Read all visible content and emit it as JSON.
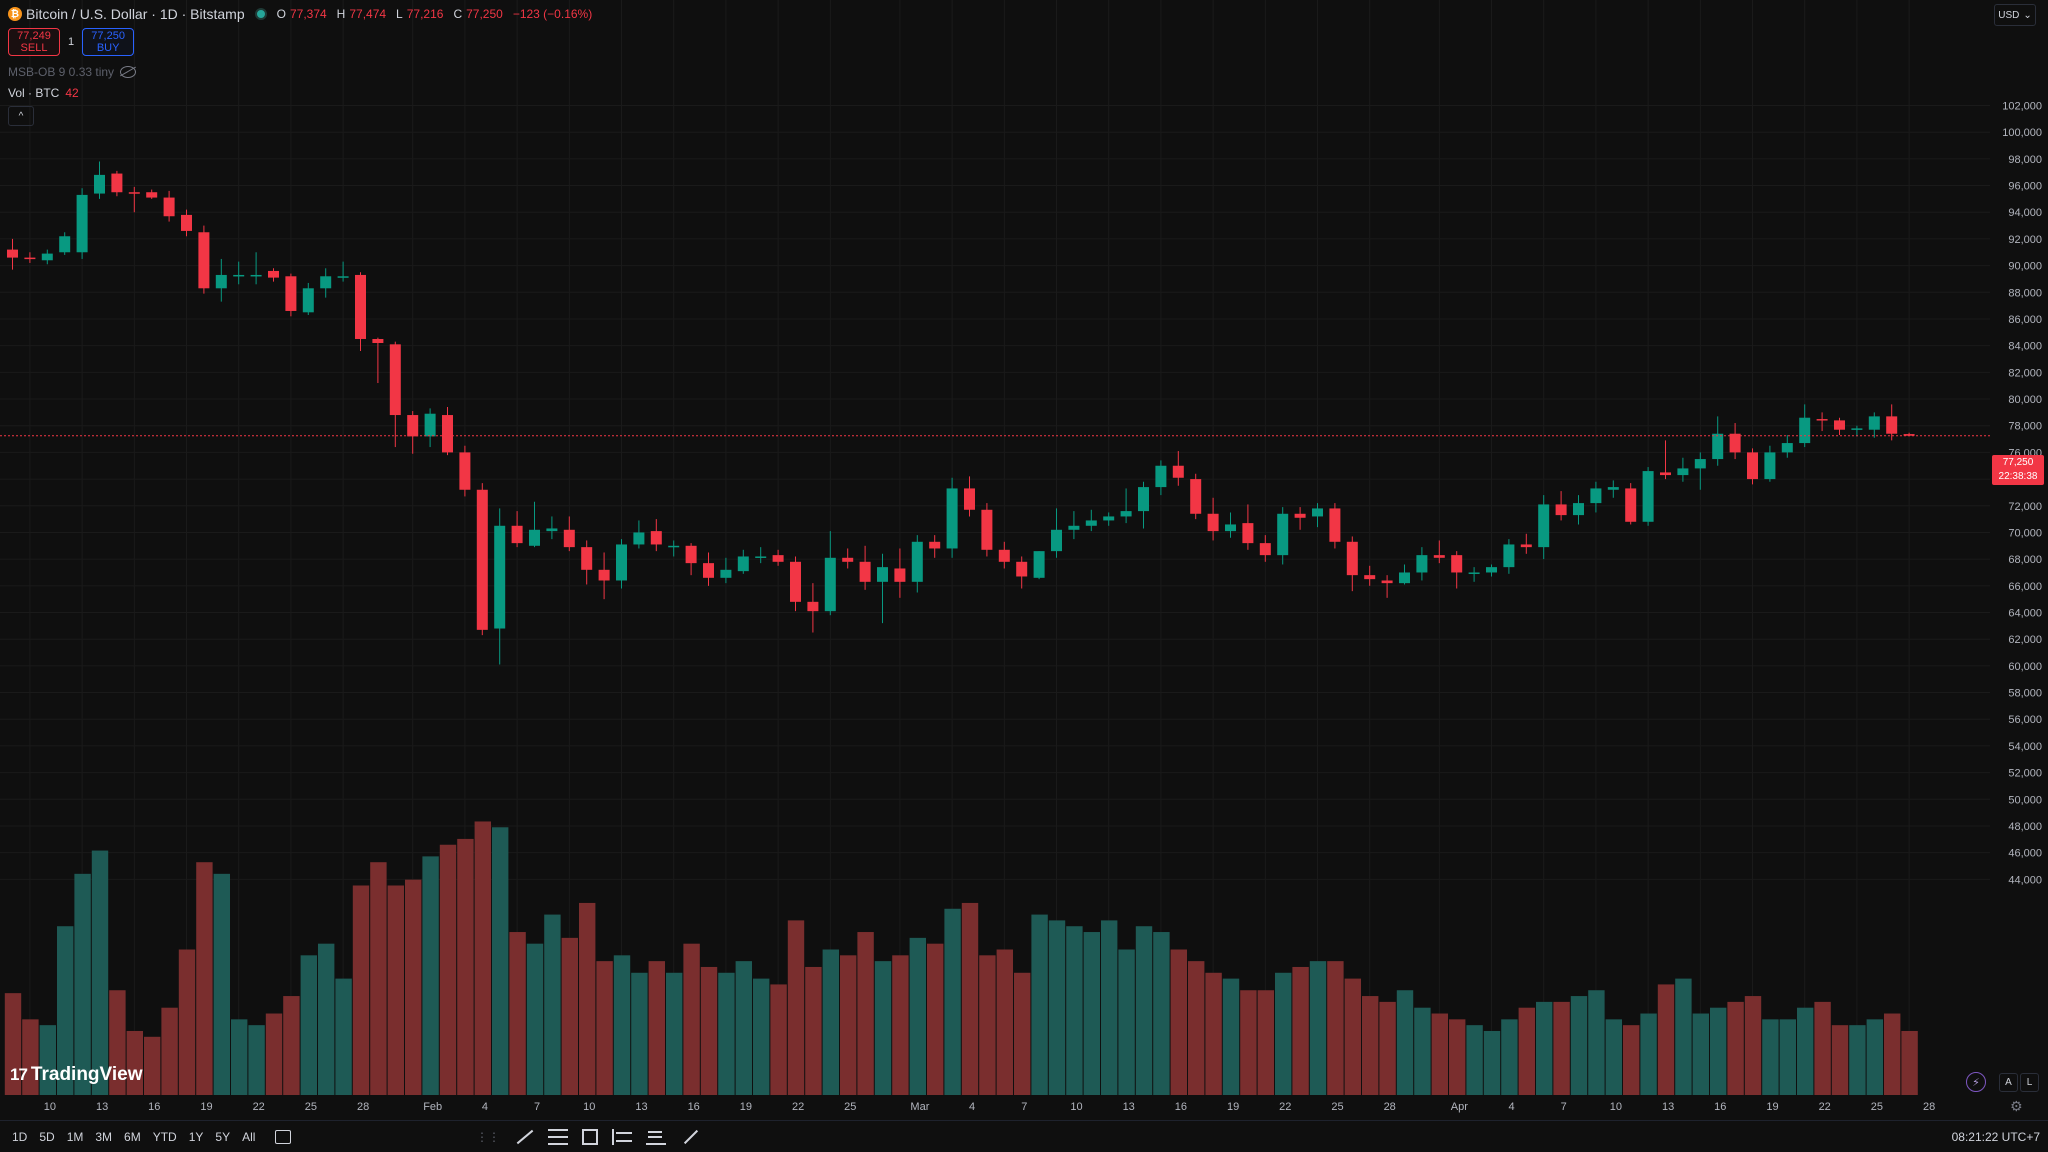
{
  "header": {
    "logo_glyph": "₿",
    "symbol_title": "Bitcoin / U.S. Dollar · 1D · Bitstamp",
    "ohlc": {
      "open_label": "O",
      "open": "77,374",
      "high_label": "H",
      "high": "77,474",
      "low_label": "L",
      "low": "77,216",
      "close_label": "C",
      "close": "77,250",
      "change": "−123 (−0.16%)"
    },
    "sell": {
      "price": "77,249",
      "label": "SELL"
    },
    "buy": {
      "price": "77,250",
      "label": "BUY"
    },
    "spread": "1",
    "indicator_msb": "MSB-OB 9 0.33 tiny",
    "indicator_vol_label": "Vol · BTC",
    "indicator_vol_value": "42",
    "collapse_glyph": "^"
  },
  "currency": {
    "label": "USD",
    "arrow": "⌄"
  },
  "last_price": {
    "value": "77,250",
    "countdown": "22:38:38"
  },
  "watermark": {
    "logo": "17",
    "text": "TradingView"
  },
  "axis_buttons": {
    "auto": "A",
    "log": "L"
  },
  "bolt_glyph": "⚡",
  "gear_glyph": "⚙",
  "bottom_bar": {
    "ranges": [
      "1D",
      "5D",
      "1M",
      "3M",
      "6M",
      "YTD",
      "1Y",
      "5Y",
      "All"
    ],
    "dots": "⋮⋮",
    "clock": "08:21:22 UTC+7"
  },
  "colors": {
    "up": "#089981",
    "down": "#f23645",
    "vol_up": "#1e5a55",
    "vol_down": "#7a2e2e",
    "grid": "#1a1a1a",
    "text": "#d1d4dc"
  },
  "chart_data": {
    "type": "candlestick",
    "price_axis_ticks": [
      "102,000",
      "100,000",
      "98,000",
      "96,000",
      "94,000",
      "92,000",
      "90,000",
      "88,000",
      "86,000",
      "84,000",
      "82,000",
      "80,000",
      "78,000",
      "76,000",
      "74,000",
      "72,000",
      "70,000",
      "68,000",
      "66,000",
      "64,000",
      "62,000",
      "60,000",
      "58,000",
      "56,000",
      "54,000",
      "52,000",
      "50,000",
      "48,000",
      "46,000",
      "44,000"
    ],
    "date_axis_labels": [
      {
        "i": 1,
        "label": "10"
      },
      {
        "i": 4,
        "label": "13"
      },
      {
        "i": 7,
        "label": "16"
      },
      {
        "i": 10,
        "label": "19"
      },
      {
        "i": 13,
        "label": "22"
      },
      {
        "i": 16,
        "label": "25"
      },
      {
        "i": 19,
        "label": "28"
      },
      {
        "i": 23,
        "label": "Feb"
      },
      {
        "i": 26,
        "label": "4"
      },
      {
        "i": 29,
        "label": "7"
      },
      {
        "i": 32,
        "label": "10"
      },
      {
        "i": 35,
        "label": "13"
      },
      {
        "i": 38,
        "label": "16"
      },
      {
        "i": 41,
        "label": "19"
      },
      {
        "i": 44,
        "label": "22"
      },
      {
        "i": 47,
        "label": "25"
      },
      {
        "i": 51,
        "label": "Mar"
      },
      {
        "i": 54,
        "label": "4"
      },
      {
        "i": 57,
        "label": "7"
      },
      {
        "i": 60,
        "label": "10"
      },
      {
        "i": 63,
        "label": "13"
      },
      {
        "i": 66,
        "label": "16"
      },
      {
        "i": 69,
        "label": "19"
      },
      {
        "i": 72,
        "label": "22"
      },
      {
        "i": 75,
        "label": "25"
      },
      {
        "i": 78,
        "label": "28"
      },
      {
        "i": 82,
        "label": "Apr"
      },
      {
        "i": 85,
        "label": "4"
      },
      {
        "i": 88,
        "label": "7"
      },
      {
        "i": 91,
        "label": "10"
      },
      {
        "i": 94,
        "label": "13"
      },
      {
        "i": 97,
        "label": "16"
      },
      {
        "i": 100,
        "label": "19"
      },
      {
        "i": 103,
        "label": "22"
      },
      {
        "i": 106,
        "label": "25"
      },
      {
        "i": 109,
        "label": "28"
      }
    ],
    "last_close": 77250,
    "candles": [
      {
        "o": 91200,
        "h": 92000,
        "l": 89700,
        "c": 90600,
        "v": 1750
      },
      {
        "o": 90600,
        "h": 91000,
        "l": 90200,
        "c": 90500,
        "v": 1300
      },
      {
        "o": 90400,
        "h": 91200,
        "l": 90100,
        "c": 90900,
        "v": 1200
      },
      {
        "o": 91000,
        "h": 92500,
        "l": 90800,
        "c": 92200,
        "v": 2900
      },
      {
        "o": 91000,
        "h": 95800,
        "l": 90500,
        "c": 95300,
        "v": 3800
      },
      {
        "o": 95400,
        "h": 97800,
        "l": 95000,
        "c": 96800,
        "v": 4200
      },
      {
        "o": 96900,
        "h": 97100,
        "l": 95200,
        "c": 95500,
        "v": 1800
      },
      {
        "o": 95500,
        "h": 95900,
        "l": 94000,
        "c": 95400,
        "v": 1100
      },
      {
        "o": 95500,
        "h": 95700,
        "l": 95000,
        "c": 95100,
        "v": 1000
      },
      {
        "o": 95100,
        "h": 95600,
        "l": 93300,
        "c": 93700,
        "v": 1500
      },
      {
        "o": 93800,
        "h": 94200,
        "l": 92200,
        "c": 92600,
        "v": 2500
      },
      {
        "o": 92500,
        "h": 93000,
        "l": 87900,
        "c": 88300,
        "v": 4000
      },
      {
        "o": 88300,
        "h": 90500,
        "l": 87300,
        "c": 89300,
        "v": 3800
      },
      {
        "o": 89200,
        "h": 90300,
        "l": 88600,
        "c": 89300,
        "v": 1300
      },
      {
        "o": 89300,
        "h": 91000,
        "l": 88600,
        "c": 89300,
        "v": 1200
      },
      {
        "o": 89600,
        "h": 89800,
        "l": 88800,
        "c": 89100,
        "v": 1400
      },
      {
        "o": 89200,
        "h": 89400,
        "l": 86200,
        "c": 86600,
        "v": 1700
      },
      {
        "o": 86500,
        "h": 88700,
        "l": 86300,
        "c": 88300,
        "v": 2400
      },
      {
        "o": 88300,
        "h": 89800,
        "l": 87600,
        "c": 89200,
        "v": 2600
      },
      {
        "o": 89200,
        "h": 90300,
        "l": 88800,
        "c": 89200,
        "v": 2000
      },
      {
        "o": 89300,
        "h": 89500,
        "l": 83600,
        "c": 84500,
        "v": 3600
      },
      {
        "o": 84500,
        "h": 84600,
        "l": 81200,
        "c": 84200,
        "v": 4000
      },
      {
        "o": 84100,
        "h": 84300,
        "l": 76400,
        "c": 78800,
        "v": 3600
      },
      {
        "o": 78800,
        "h": 79100,
        "l": 75900,
        "c": 77200,
        "v": 3700
      },
      {
        "o": 77200,
        "h": 79300,
        "l": 76400,
        "c": 78900,
        "v": 4100
      },
      {
        "o": 78800,
        "h": 79400,
        "l": 75800,
        "c": 76000,
        "v": 4300
      },
      {
        "o": 76000,
        "h": 76500,
        "l": 72700,
        "c": 73200,
        "v": 4400
      },
      {
        "o": 73200,
        "h": 73700,
        "l": 62300,
        "c": 62700,
        "v": 4700
      },
      {
        "o": 62800,
        "h": 71800,
        "l": 60100,
        "c": 70500,
        "v": 4600
      },
      {
        "o": 70500,
        "h": 71600,
        "l": 68900,
        "c": 69200,
        "v": 2800
      },
      {
        "o": 69000,
        "h": 72300,
        "l": 68900,
        "c": 70200,
        "v": 2600
      },
      {
        "o": 70100,
        "h": 71200,
        "l": 69500,
        "c": 70300,
        "v": 3100
      },
      {
        "o": 70200,
        "h": 71200,
        "l": 68600,
        "c": 68900,
        "v": 2700
      },
      {
        "o": 68900,
        "h": 69400,
        "l": 66100,
        "c": 67200,
        "v": 3300
      },
      {
        "o": 67200,
        "h": 68500,
        "l": 65000,
        "c": 66400,
        "v": 2300
      },
      {
        "o": 66400,
        "h": 69500,
        "l": 65800,
        "c": 69100,
        "v": 2400
      },
      {
        "o": 69100,
        "h": 70900,
        "l": 68800,
        "c": 70000,
        "v": 2100
      },
      {
        "o": 70100,
        "h": 71000,
        "l": 68600,
        "c": 69100,
        "v": 2300
      },
      {
        "o": 69000,
        "h": 69400,
        "l": 68200,
        "c": 69000,
        "v": 2100
      },
      {
        "o": 69000,
        "h": 69200,
        "l": 66800,
        "c": 67700,
        "v": 2600
      },
      {
        "o": 67700,
        "h": 68500,
        "l": 66000,
        "c": 66600,
        "v": 2200
      },
      {
        "o": 66600,
        "h": 68100,
        "l": 66200,
        "c": 67200,
        "v": 2100
      },
      {
        "o": 67100,
        "h": 68700,
        "l": 66900,
        "c": 68200,
        "v": 2300
      },
      {
        "o": 68100,
        "h": 68900,
        "l": 67700,
        "c": 68200,
        "v": 2000
      },
      {
        "o": 68300,
        "h": 68700,
        "l": 67500,
        "c": 67800,
        "v": 1900
      },
      {
        "o": 67800,
        "h": 68200,
        "l": 64100,
        "c": 64800,
        "v": 3000
      },
      {
        "o": 64800,
        "h": 66200,
        "l": 62500,
        "c": 64100,
        "v": 2200
      },
      {
        "o": 64100,
        "h": 70100,
        "l": 63800,
        "c": 68100,
        "v": 2500
      },
      {
        "o": 68100,
        "h": 68800,
        "l": 67300,
        "c": 67800,
        "v": 2400
      },
      {
        "o": 67800,
        "h": 69000,
        "l": 65700,
        "c": 66300,
        "v": 2800
      },
      {
        "o": 66300,
        "h": 68400,
        "l": 63200,
        "c": 67400,
        "v": 2300
      },
      {
        "o": 67300,
        "h": 68800,
        "l": 65100,
        "c": 66300,
        "v": 2400
      },
      {
        "o": 66300,
        "h": 69800,
        "l": 65500,
        "c": 69300,
        "v": 2700
      },
      {
        "o": 69300,
        "h": 69800,
        "l": 68100,
        "c": 68800,
        "v": 2600
      },
      {
        "o": 68800,
        "h": 74100,
        "l": 68100,
        "c": 73300,
        "v": 3200
      },
      {
        "o": 73300,
        "h": 74200,
        "l": 71200,
        "c": 71700,
        "v": 3300
      },
      {
        "o": 71700,
        "h": 72200,
        "l": 68200,
        "c": 68700,
        "v": 2400
      },
      {
        "o": 68700,
        "h": 69300,
        "l": 67300,
        "c": 67800,
        "v": 2500
      },
      {
        "o": 67800,
        "h": 68200,
        "l": 65800,
        "c": 66700,
        "v": 2100
      },
      {
        "o": 66600,
        "h": 68600,
        "l": 66500,
        "c": 68600,
        "v": 3100
      },
      {
        "o": 68600,
        "h": 71800,
        "l": 68100,
        "c": 70200,
        "v": 3000
      },
      {
        "o": 70200,
        "h": 71600,
        "l": 69500,
        "c": 70500,
        "v": 2900
      },
      {
        "o": 70500,
        "h": 71700,
        "l": 70100,
        "c": 70900,
        "v": 2800
      },
      {
        "o": 70900,
        "h": 71500,
        "l": 70500,
        "c": 71200,
        "v": 3000
      },
      {
        "o": 71200,
        "h": 73300,
        "l": 70700,
        "c": 71600,
        "v": 2500
      },
      {
        "o": 71600,
        "h": 73800,
        "l": 70300,
        "c": 73400,
        "v": 2900
      },
      {
        "o": 73400,
        "h": 75400,
        "l": 72800,
        "c": 75000,
        "v": 2800
      },
      {
        "o": 75000,
        "h": 76100,
        "l": 73500,
        "c": 74100,
        "v": 2500
      },
      {
        "o": 74000,
        "h": 74400,
        "l": 71000,
        "c": 71400,
        "v": 2300
      },
      {
        "o": 71400,
        "h": 72600,
        "l": 69400,
        "c": 70100,
        "v": 2100
      },
      {
        "o": 70100,
        "h": 71500,
        "l": 69600,
        "c": 70600,
        "v": 2000
      },
      {
        "o": 70700,
        "h": 72100,
        "l": 68700,
        "c": 69200,
        "v": 1800
      },
      {
        "o": 69200,
        "h": 69800,
        "l": 67800,
        "c": 68300,
        "v": 1800
      },
      {
        "o": 68300,
        "h": 71900,
        "l": 67600,
        "c": 71400,
        "v": 2100
      },
      {
        "o": 71400,
        "h": 71900,
        "l": 70200,
        "c": 71100,
        "v": 2200
      },
      {
        "o": 71200,
        "h": 72200,
        "l": 70400,
        "c": 71800,
        "v": 2300
      },
      {
        "o": 71800,
        "h": 72200,
        "l": 68800,
        "c": 69300,
        "v": 2300
      },
      {
        "o": 69300,
        "h": 69700,
        "l": 65600,
        "c": 66800,
        "v": 2000
      },
      {
        "o": 66800,
        "h": 67500,
        "l": 66000,
        "c": 66500,
        "v": 1700
      },
      {
        "o": 66400,
        "h": 66800,
        "l": 65100,
        "c": 66200,
        "v": 1600
      },
      {
        "o": 66200,
        "h": 67600,
        "l": 66100,
        "c": 67000,
        "v": 1800
      },
      {
        "o": 67000,
        "h": 68900,
        "l": 66400,
        "c": 68300,
        "v": 1500
      },
      {
        "o": 68300,
        "h": 69400,
        "l": 67700,
        "c": 68100,
        "v": 1400
      },
      {
        "o": 68300,
        "h": 68600,
        "l": 65800,
        "c": 67000,
        "v": 1300
      },
      {
        "o": 66900,
        "h": 67400,
        "l": 66300,
        "c": 67000,
        "v": 1200
      },
      {
        "o": 67000,
        "h": 67600,
        "l": 66700,
        "c": 67400,
        "v": 1100
      },
      {
        "o": 67400,
        "h": 69500,
        "l": 66900,
        "c": 69100,
        "v": 1300
      },
      {
        "o": 69100,
        "h": 69900,
        "l": 68400,
        "c": 68900,
        "v": 1500
      },
      {
        "o": 68900,
        "h": 72800,
        "l": 68000,
        "c": 72100,
        "v": 1600
      },
      {
        "o": 72100,
        "h": 73100,
        "l": 70900,
        "c": 71300,
        "v": 1600
      },
      {
        "o": 71300,
        "h": 72800,
        "l": 70600,
        "c": 72200,
        "v": 1700
      },
      {
        "o": 72200,
        "h": 73800,
        "l": 71500,
        "c": 73300,
        "v": 1800
      },
      {
        "o": 73200,
        "h": 73900,
        "l": 72600,
        "c": 73400,
        "v": 1300
      },
      {
        "o": 73300,
        "h": 73700,
        "l": 70600,
        "c": 70800,
        "v": 1200
      },
      {
        "o": 70800,
        "h": 74900,
        "l": 70500,
        "c": 74600,
        "v": 1400
      },
      {
        "o": 74500,
        "h": 76900,
        "l": 74000,
        "c": 74300,
        "v": 1900
      },
      {
        "o": 74300,
        "h": 75600,
        "l": 73800,
        "c": 74800,
        "v": 2000
      },
      {
        "o": 74800,
        "h": 76000,
        "l": 73200,
        "c": 75500,
        "v": 1400
      },
      {
        "o": 75500,
        "h": 78700,
        "l": 75000,
        "c": 77400,
        "v": 1500
      },
      {
        "o": 77400,
        "h": 78200,
        "l": 75500,
        "c": 76000,
        "v": 1600
      },
      {
        "o": 76000,
        "h": 76300,
        "l": 73600,
        "c": 74000,
        "v": 1700
      },
      {
        "o": 74000,
        "h": 76500,
        "l": 73800,
        "c": 76000,
        "v": 1300
      },
      {
        "o": 76000,
        "h": 77300,
        "l": 75600,
        "c": 76700,
        "v": 1300
      },
      {
        "o": 76700,
        "h": 79600,
        "l": 76400,
        "c": 78600,
        "v": 1500
      },
      {
        "o": 78500,
        "h": 79000,
        "l": 77600,
        "c": 78400,
        "v": 1600
      },
      {
        "o": 78400,
        "h": 78600,
        "l": 77300,
        "c": 77700,
        "v": 1200
      },
      {
        "o": 77700,
        "h": 78000,
        "l": 77200,
        "c": 77800,
        "v": 1200
      },
      {
        "o": 77700,
        "h": 79000,
        "l": 77100,
        "c": 78700,
        "v": 1300
      },
      {
        "o": 78700,
        "h": 79600,
        "l": 76900,
        "c": 77400,
        "v": 1400
      },
      {
        "o": 77374,
        "h": 77474,
        "l": 77216,
        "c": 77250,
        "v": 1100
      }
    ]
  }
}
